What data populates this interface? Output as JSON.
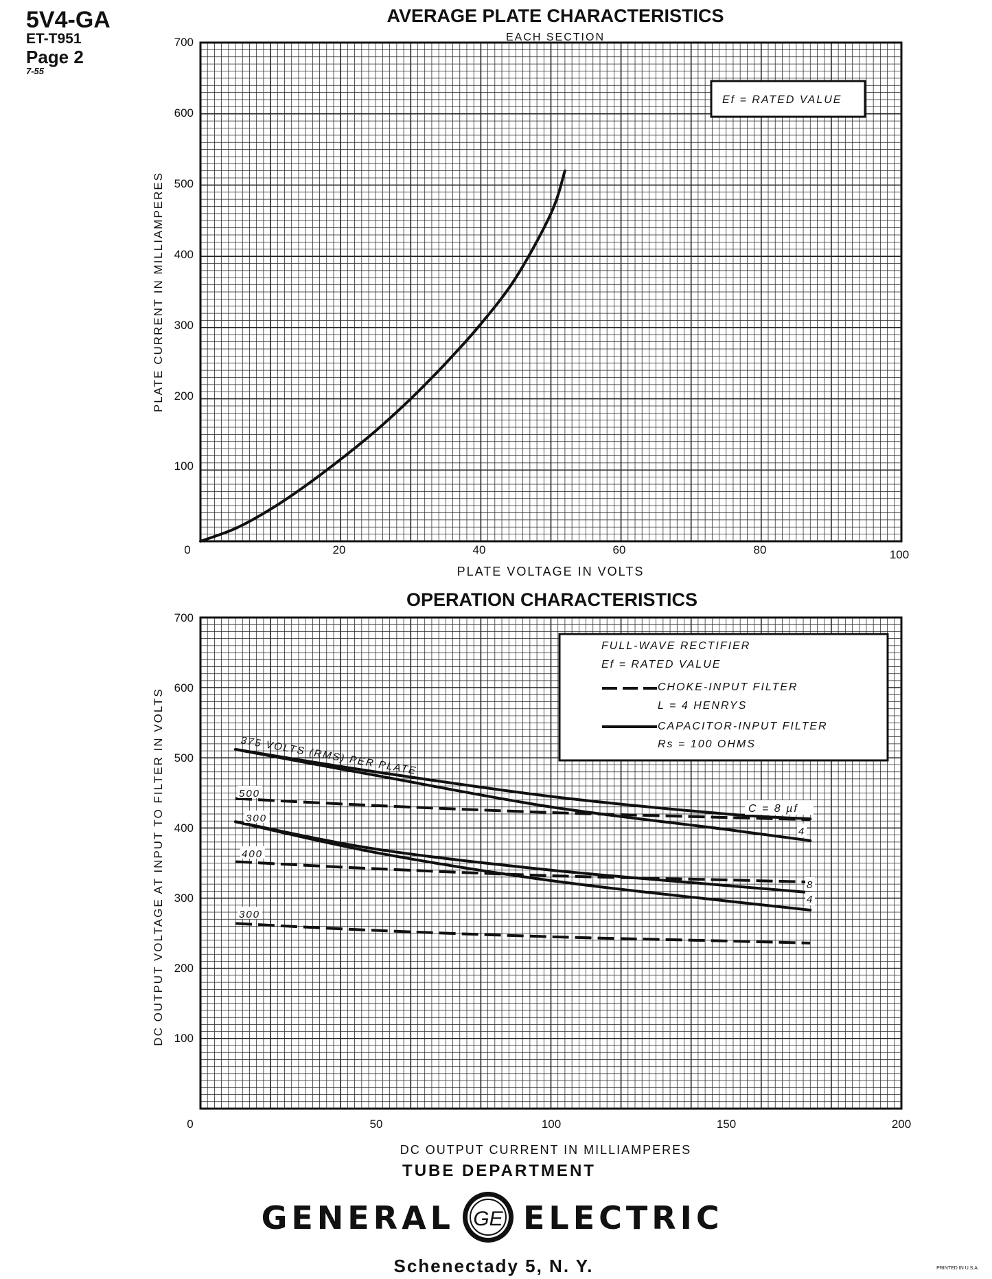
{
  "header": {
    "tube_type": "5V4-GA",
    "doc_number": "ET-T951",
    "page": "Page 2",
    "date": "7-55"
  },
  "footer": {
    "department": "TUBE DEPARTMENT",
    "company_left": "GENERAL",
    "company_right": "ELECTRIC",
    "logo_glyph": "GE",
    "address": "Schenectady 5, N. Y.",
    "printed_note": "PRINTED IN U.S.A."
  },
  "chart_data": [
    {
      "type": "line",
      "title": "AVERAGE PLATE CHARACTERISTICS",
      "subtitle": "EACH SECTION",
      "xlabel": "PLATE VOLTAGE IN VOLTS",
      "ylabel": "PLATE CURRENT IN MILLIAMPERES",
      "xlim": [
        0,
        100
      ],
      "ylim": [
        0,
        700
      ],
      "x_ticks": [
        "0",
        "20",
        "40",
        "60",
        "80",
        "100"
      ],
      "y_ticks": [
        "100",
        "200",
        "300",
        "400",
        "500",
        "600",
        "700"
      ],
      "grid": true,
      "legend_box": [
        "Ef = RATED VALUE"
      ],
      "legend_position": "top-right",
      "series": [
        {
          "style": "solid",
          "x": [
            0,
            5,
            10,
            15,
            20,
            25,
            30,
            35,
            40,
            45,
            50,
            52
          ],
          "y": [
            0,
            18,
            45,
            78,
            115,
            155,
            200,
            250,
            305,
            370,
            460,
            520
          ]
        }
      ]
    },
    {
      "type": "line",
      "title": "OPERATION CHARACTERISTICS",
      "xlabel": "DC OUTPUT CURRENT IN MILLIAMPERES",
      "ylabel": "DC OUTPUT VOLTAGE AT INPUT TO FILTER IN VOLTS",
      "xlim": [
        0,
        200
      ],
      "ylim": [
        0,
        700
      ],
      "x_ticks": [
        "0",
        "50",
        "100",
        "150",
        "200"
      ],
      "y_ticks": [
        "100",
        "200",
        "300",
        "400",
        "500",
        "600",
        "700"
      ],
      "grid": true,
      "legend_position": "top-right",
      "legend": {
        "line1": "FULL-WAVE RECTIFIER",
        "line2": "Ef = RATED VALUE",
        "dashed_label": "CHOKE-INPUT FILTER",
        "dashed_sub": "L = 4 HENRYS",
        "solid_label": "CAPACITOR-INPUT FILTER",
        "solid_sub": "Rs = 100 OHMS"
      },
      "series": [
        {
          "style": "solid",
          "x": [
            10,
            50,
            100,
            150,
            174
          ],
          "y": [
            512,
            480,
            445,
            420,
            413
          ]
        },
        {
          "style": "solid",
          "x": [
            10,
            50,
            100,
            150,
            174
          ],
          "y": [
            512,
            475,
            430,
            398,
            382
          ]
        },
        {
          "style": "solid",
          "x": [
            10,
            50,
            100,
            150,
            174
          ],
          "y": [
            409,
            370,
            340,
            318,
            308
          ]
        },
        {
          "style": "solid",
          "x": [
            10,
            50,
            100,
            150,
            174
          ],
          "y": [
            409,
            365,
            325,
            296,
            283
          ]
        },
        {
          "style": "dashed",
          "x": [
            10,
            50,
            100,
            150,
            174
          ],
          "y": [
            442,
            432,
            422,
            415,
            412
          ]
        },
        {
          "style": "dashed",
          "x": [
            10,
            50,
            100,
            150,
            174
          ],
          "y": [
            352,
            342,
            332,
            326,
            323
          ]
        },
        {
          "style": "dashed",
          "x": [
            10,
            50,
            100,
            150,
            174
          ],
          "y": [
            264,
            254,
            245,
            239,
            236
          ]
        }
      ],
      "annotations": {
        "rms_label": "375 VOLTS (RMS) PER PLATE",
        "cap_label_8": "C = 8 µf",
        "cap_label_4": "4",
        "cap_label_8b": "8",
        "cap_label_4b": "4",
        "choke_500": "500",
        "cap_300": "300",
        "choke_400": "400",
        "choke_300": "300"
      }
    }
  ]
}
